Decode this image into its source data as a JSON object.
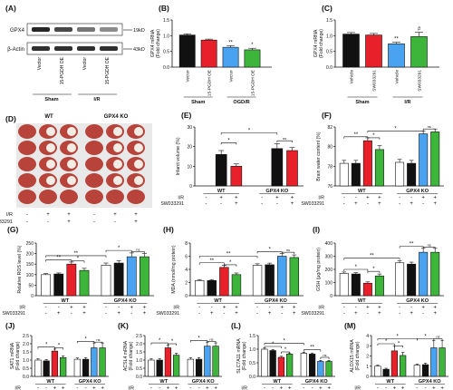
{
  "panel_A": {
    "letter": "(A)",
    "rows": [
      "GPX4",
      "β-Actin"
    ],
    "markers": [
      "19kD",
      "43kD"
    ],
    "lanes": [
      "Vector",
      "15-PGDH OE",
      "Vector",
      "15-PGDH OE"
    ],
    "groups": [
      "Sham",
      "I/R"
    ]
  },
  "panel_D": {
    "letter": "(D)",
    "groups": [
      "WT",
      "GPX4 KO"
    ],
    "row_labels": [
      "I/R",
      "SW033291"
    ],
    "ir": [
      "-",
      "+",
      "+",
      "-",
      "+",
      "+"
    ],
    "sw": [
      "-",
      "-",
      "+",
      "-",
      "-",
      "+"
    ]
  },
  "colors": {
    "black": "#111111",
    "red": "#e8202a",
    "blue": "#4aa3f0",
    "green": "#3cb53a",
    "white": "#ffffff"
  },
  "chart_data": [
    {
      "id": "B",
      "letter": "(B)",
      "type": "bar",
      "ylabel": "GPX4 mRNA\n(Fold change)",
      "ylim": [
        0,
        1.5
      ],
      "yticks": [
        "0.0",
        "0.5",
        "1.0",
        "1.5"
      ],
      "categories": [
        "Vector",
        "15-PGDH OE",
        "Vector",
        "15-PGDH OE"
      ],
      "values": [
        1.02,
        0.86,
        0.63,
        0.55
      ],
      "errors": [
        0.04,
        0.03,
        0.05,
        0.05
      ],
      "sig": [
        "",
        "",
        "**",
        "*"
      ],
      "groups": [
        "Sham",
        "OGD/R"
      ]
    },
    {
      "id": "C",
      "letter": "(C)",
      "type": "bar",
      "ylabel": "GPX4 mRNA\n(Fold change)",
      "ylim": [
        0,
        1.5
      ],
      "yticks": [
        "0.0",
        "0.5",
        "1.0",
        "1.5"
      ],
      "categories": [
        "Vehicle",
        "SW033291",
        "Vehicle",
        "SW033291"
      ],
      "values": [
        1.05,
        1.02,
        0.74,
        0.97
      ],
      "errors": [
        0.05,
        0.05,
        0.05,
        0.14
      ],
      "sig": [
        "",
        "",
        "**",
        "#"
      ],
      "groups": [
        "Sham",
        "I/R"
      ]
    },
    {
      "id": "E",
      "letter": "(E)",
      "type": "bar",
      "ylabel": "Infarct volume (%)",
      "ylim": [
        0,
        30
      ],
      "yticks": [
        "0",
        "10",
        "20",
        "30"
      ],
      "values": [
        0,
        16,
        10,
        0,
        19,
        18
      ],
      "errors": [
        0,
        2,
        1.2,
        0,
        2.5,
        1.5
      ],
      "ir": [
        "-",
        "+",
        "+",
        "-",
        "+",
        "+"
      ],
      "sw": [
        "-",
        "-",
        "+",
        "-",
        "-",
        "+"
      ],
      "groups": [
        "WT",
        "GPX4 KO"
      ]
    },
    {
      "id": "F",
      "letter": "(F)",
      "type": "bar",
      "ylabel": "Brain water content (%)",
      "ylim": [
        76,
        82
      ],
      "yticks": [
        "76",
        "78",
        "80",
        "82"
      ],
      "values": [
        78.3,
        78.3,
        80.6,
        79.7,
        78.4,
        78.3,
        81.3,
        81.5
      ],
      "errors": [
        0.3,
        0.3,
        0.3,
        0.4,
        0.3,
        0.3,
        0.3,
        0.3
      ],
      "ir": [
        "-",
        "-",
        "+",
        "+",
        "-",
        "-",
        "+",
        "+"
      ],
      "sw": [
        "-",
        "+",
        "-",
        "+",
        "-",
        "+",
        "-",
        "+"
      ],
      "groups": [
        "WT",
        "GPX4 KO"
      ]
    },
    {
      "id": "G",
      "letter": "(G)",
      "type": "bar",
      "ylabel": "Relative ROS level (%)",
      "ylim": [
        0,
        250
      ],
      "yticks": [
        "0",
        "50",
        "100",
        "150",
        "200",
        "250"
      ],
      "values": [
        100,
        103,
        150,
        120,
        145,
        155,
        185,
        185
      ],
      "errors": [
        5,
        5,
        10,
        10,
        10,
        12,
        18,
        15
      ],
      "ir": [
        "-",
        "-",
        "+",
        "+",
        "-",
        "-",
        "+",
        "+"
      ],
      "sw": [
        "-",
        "+",
        "-",
        "+",
        "-",
        "+",
        "-",
        "+"
      ],
      "groups": [
        "WT",
        "GPX4 KO"
      ]
    },
    {
      "id": "H",
      "letter": "(H)",
      "type": "bar",
      "ylabel": "MDA (nmol/mg protein)",
      "ylim": [
        0,
        8
      ],
      "yticks": [
        "0",
        "2",
        "4",
        "6",
        "8"
      ],
      "values": [
        2.3,
        2.3,
        4.3,
        3.2,
        4.6,
        4.7,
        6.0,
        5.8
      ],
      "errors": [
        0.15,
        0.15,
        0.3,
        0.25,
        0.25,
        0.25,
        0.4,
        0.4
      ],
      "ir": [
        "-",
        "-",
        "+",
        "+",
        "-",
        "-",
        "+",
        "+"
      ],
      "sw": [
        "-",
        "+",
        "-",
        "+",
        "-",
        "+",
        "-",
        "+"
      ],
      "groups": [
        "WT",
        "GPX4 KO"
      ]
    },
    {
      "id": "I",
      "letter": "(I)",
      "type": "bar",
      "ylabel": "GSH (μg/mg protein)",
      "ylim": [
        0,
        400
      ],
      "yticks": [
        "0",
        "100",
        "200",
        "300",
        "400"
      ],
      "values": [
        170,
        165,
        95,
        150,
        250,
        240,
        330,
        330
      ],
      "errors": [
        10,
        10,
        10,
        15,
        15,
        15,
        30,
        30
      ],
      "ir": [
        "-",
        "-",
        "+",
        "+",
        "-",
        "-",
        "+",
        "+"
      ],
      "sw": [
        "-",
        "+",
        "-",
        "+",
        "-",
        "+",
        "-",
        "+"
      ],
      "groups": [
        "WT",
        "GPX4 KO"
      ]
    },
    {
      "id": "J",
      "letter": "(J)",
      "type": "bar",
      "ylabel": "SAT1 mRNA\n(Fold change)",
      "ylim": [
        0,
        2.5
      ],
      "yticks": [
        "0.0",
        "0.5",
        "1.0",
        "1.5",
        "2.0",
        "2.5"
      ],
      "values": [
        1.0,
        0.95,
        1.55,
        1.15,
        1.05,
        1.05,
        1.75,
        1.75
      ],
      "errors": [
        0.08,
        0.08,
        0.12,
        0.1,
        0.08,
        0.1,
        0.3,
        0.3
      ],
      "ir": [
        "-",
        "-",
        "+",
        "+",
        "-",
        "-",
        "+",
        "+"
      ],
      "sw": [
        "-",
        "+",
        "-",
        "+",
        "-",
        "+",
        "-",
        "+"
      ],
      "groups": [
        "WT",
        "GPX4 KO"
      ]
    },
    {
      "id": "K",
      "letter": "(K)",
      "type": "bar",
      "ylabel": "ACSL4 mRNA\n(Fold change)",
      "ylim": [
        0,
        2.5
      ],
      "yticks": [
        "0.0",
        "0.5",
        "1.0",
        "1.5",
        "2.0",
        "2.5"
      ],
      "values": [
        1.0,
        1.0,
        1.75,
        1.3,
        1.05,
        1.05,
        1.85,
        1.85
      ],
      "errors": [
        0.08,
        0.08,
        0.15,
        0.12,
        0.1,
        0.1,
        0.25,
        0.2
      ],
      "ir": [
        "-",
        "-",
        "+",
        "+",
        "-",
        "-",
        "+",
        "+"
      ],
      "sw": [
        "-",
        "+",
        "-",
        "+",
        "-",
        "+",
        "-",
        "+"
      ],
      "groups": [
        "WT",
        "GPX4 KO"
      ]
    },
    {
      "id": "L",
      "letter": "(L)",
      "type": "bar",
      "ylabel": "SLC7A11 mRNA\n(Fold change)",
      "ylim": [
        0,
        1.5
      ],
      "yticks": [
        "0.0",
        "0.5",
        "1.0",
        "1.5"
      ],
      "values": [
        1.0,
        0.95,
        0.7,
        0.82,
        0.85,
        0.82,
        0.55,
        0.55
      ],
      "errors": [
        0.04,
        0.04,
        0.04,
        0.04,
        0.04,
        0.04,
        0.04,
        0.04
      ],
      "ir": [
        "-",
        "-",
        "+",
        "+",
        "-",
        "-",
        "+",
        "+"
      ],
      "sw": [
        "-",
        "+",
        "-",
        "+",
        "-",
        "+",
        "-",
        "+"
      ],
      "groups": [
        "WT",
        "GPX4 KO"
      ]
    },
    {
      "id": "M",
      "letter": "(M)",
      "type": "bar",
      "ylabel": "ALOX15 mRNA\n(Fold change)",
      "ylim": [
        0,
        4
      ],
      "yticks": [
        "0",
        "1",
        "2",
        "3",
        "4"
      ],
      "values": [
        1.0,
        0.7,
        2.5,
        2.05,
        1.1,
        1.15,
        2.8,
        2.8
      ],
      "errors": [
        0.1,
        0.1,
        0.5,
        0.3,
        0.1,
        0.15,
        0.7,
        0.7
      ],
      "ir": [
        "-",
        "-",
        "+",
        "+",
        "-",
        "-",
        "+",
        "+"
      ],
      "sw": [
        "-",
        "+",
        "-",
        "+",
        "-",
        "+",
        "-",
        "+"
      ],
      "groups": [
        "WT",
        "GPX4 KO"
      ]
    }
  ],
  "row_labels": [
    "I/R",
    "SW033291"
  ],
  "sig_labels": [
    "*",
    "**",
    "ns"
  ]
}
